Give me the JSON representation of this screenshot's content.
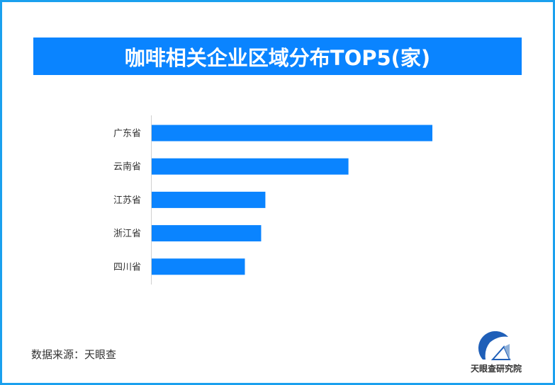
{
  "chart_data": {
    "type": "bar",
    "orientation": "horizontal",
    "title": "咖啡相关企业区域分布TOP5(家)",
    "categories": [
      "广东省",
      "云南省",
      "江苏省",
      "浙江省",
      "四川省"
    ],
    "values": [
      100,
      70.1,
      40.5,
      39.0,
      33.2
    ],
    "value_note": "relative to largest bar (no axis values printed)",
    "xlim": [
      0,
      100
    ],
    "grid": false,
    "bar_color": "#0a84ff"
  },
  "footer": {
    "source": "数据来源：天眼查"
  },
  "logo": {
    "text": "天眼查研究院"
  },
  "colors": {
    "border": "#1aa0ee",
    "banner": "#0a84ff",
    "bar": "#0a84ff"
  }
}
